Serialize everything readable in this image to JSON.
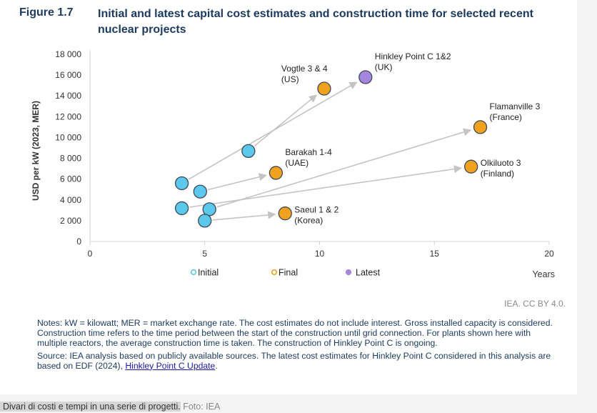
{
  "figure": {
    "number": "Figure 1.7",
    "title": "Initial and latest capital cost estimates and construction time for selected recent nuclear projects",
    "credit": "IEA. CC BY 4.0."
  },
  "chart_data": {
    "type": "scatter",
    "ylabel": "USD per kW (2023, MER)",
    "xlabel": "Years",
    "xlim": [
      0,
      20
    ],
    "ylim": [
      0,
      18000
    ],
    "x_ticks": [
      0,
      5,
      10,
      15,
      20
    ],
    "y_ticks": [
      0,
      2000,
      4000,
      6000,
      8000,
      10000,
      12000,
      14000,
      16000,
      18000
    ],
    "y_tick_labels": [
      "0",
      "2 000",
      "4 000",
      "6 000",
      "8 000",
      "10 000",
      "12 000",
      "14 000",
      "16 000",
      "18 000"
    ],
    "grid": false,
    "colors": {
      "Initial": "#5bc8ec",
      "Final": "#f0a21f",
      "Latest": "#a486dd",
      "arrow": "#c4c4c4",
      "axis": "#d0d0d0",
      "outline": "#3d4a56"
    },
    "legend": [
      {
        "name": "Initial",
        "marker": "○",
        "series": "Initial"
      },
      {
        "name": "Final",
        "marker": "○",
        "series": "Final"
      },
      {
        "name": "Latest",
        "marker": "●",
        "series": "Latest"
      }
    ],
    "projects": [
      {
        "name": "Vogtle 3 & 4",
        "label_lines": [
          "Vogtle 3 & 4",
          "(US)"
        ],
        "initial": [
          6.9,
          8700
        ],
        "final": [
          10.2,
          14700
        ],
        "final_series": "Final",
        "label_side": "above-left"
      },
      {
        "name": "Hinkley Point C 1&2",
        "label_lines": [
          "Hinkley Point C 1&2",
          "(UK)"
        ],
        "initial": [
          4.0,
          5600
        ],
        "final": [
          12.0,
          15800
        ],
        "final_series": "Latest",
        "label_side": "above-right"
      },
      {
        "name": "Flamanville 3",
        "label_lines": [
          "Flamanville 3",
          "(France)"
        ],
        "initial": [
          5.2,
          3100
        ],
        "final": [
          17.0,
          11000
        ],
        "final_series": "Final",
        "label_side": "above-right"
      },
      {
        "name": "Barakah 1-4",
        "label_lines": [
          "Barakah 1-4",
          "(UAE)"
        ],
        "initial": [
          4.8,
          4800
        ],
        "final": [
          8.1,
          6600
        ],
        "final_series": "Final",
        "label_side": "above-right"
      },
      {
        "name": "Olkiluoto 3",
        "label_lines": [
          "Olkiluoto 3",
          "(Finland)"
        ],
        "initial": [
          4.0,
          3200
        ],
        "final": [
          16.6,
          7200
        ],
        "final_series": "Final",
        "label_side": "right"
      },
      {
        "name": "Saeul 1 & 2",
        "label_lines": [
          "Saeul 1 & 2",
          "(Korea)"
        ],
        "initial": [
          5.0,
          2000
        ],
        "final": [
          8.5,
          2700
        ],
        "final_series": "Final",
        "label_side": "right"
      }
    ]
  },
  "notes": {
    "notes_text": "Notes: kW = kilowatt; MER = market exchange rate. The cost estimates do not include interest. Gross installed capacity is considered. Construction time refers to the time period between the start of the construction until grid connection. For plants shown here with multiple reactors, the average construction time is taken. The construction of Hinkley Point C is ongoing.",
    "source_text": "Source: IEA analysis based on publicly available sources. The latest cost estimates for Hinkley Point C considered in this analysis are based on EDF (2024),",
    "source_link": "Hinkley Point C Update",
    "source_end": "."
  },
  "caption": {
    "text": "Divari di costi e tempi in una serie di progetti.",
    "credit": "Foto: IEA"
  }
}
